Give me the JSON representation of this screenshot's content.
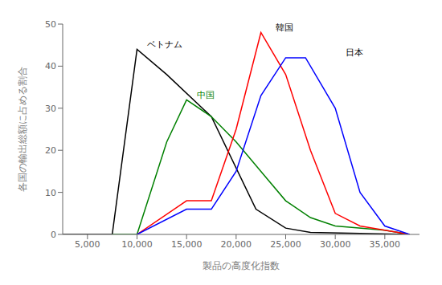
{
  "chart_data": {
    "type": "line",
    "xlabel": "製品の高度化指数",
    "ylabel": "各国の輸出総額に占める割合",
    "xlim": [
      2500,
      38500
    ],
    "ylim": [
      0,
      50
    ],
    "xticks": [
      {
        "value": 5000,
        "label": "5,000"
      },
      {
        "value": 10000,
        "label": "10,000"
      },
      {
        "value": 15000,
        "label": "15,000"
      },
      {
        "value": 20000,
        "label": "20,000"
      },
      {
        "value": 25000,
        "label": "25,000"
      },
      {
        "value": 30000,
        "label": "30,000"
      },
      {
        "value": 35000,
        "label": "35,000"
      }
    ],
    "yticks": [
      0,
      10,
      20,
      30,
      40,
      50
    ],
    "grid": false,
    "series": [
      {
        "color": "#000000",
        "x": [
          2500,
          7500,
          10000,
          13000,
          17500,
          22000,
          25000,
          27500,
          37500
        ],
        "values": [
          0,
          0,
          44,
          38,
          28,
          6,
          1.5,
          0.5,
          0
        ]
      },
      {
        "color": "#008000",
        "x": [
          7500,
          10000,
          13000,
          15000,
          17500,
          20000,
          22500,
          25000,
          27500,
          30000,
          35000,
          37500
        ],
        "values": [
          0,
          0,
          22,
          32,
          28,
          22,
          15,
          8,
          4,
          2,
          1,
          0
        ]
      },
      {
        "color": "#ff0000",
        "x": [
          10000,
          15000,
          17500,
          20000,
          22500,
          25000,
          27500,
          30000,
          32500,
          35000,
          37500
        ],
        "values": [
          0,
          8,
          8,
          25,
          48,
          38,
          20,
          5,
          2,
          1,
          0
        ]
      },
      {
        "color": "#0000ff",
        "x": [
          10000,
          15000,
          17500,
          20000,
          22500,
          25000,
          27000,
          30000,
          32500,
          35000,
          37500
        ],
        "values": [
          0,
          6,
          6,
          15,
          33,
          42,
          42,
          30,
          10,
          2,
          0
        ]
      }
    ],
    "annotations": [
      {
        "text": "ベトナム",
        "x": 11000,
        "y": 44.5,
        "color": "#000000"
      },
      {
        "text": "中国",
        "x": 16000,
        "y": 32.5,
        "color": "#008000"
      },
      {
        "text": "韓国",
        "x": 24000,
        "y": 48.5,
        "color": "#000000"
      },
      {
        "text": "日本",
        "x": 31000,
        "y": 42.5,
        "color": "#000000"
      }
    ]
  }
}
